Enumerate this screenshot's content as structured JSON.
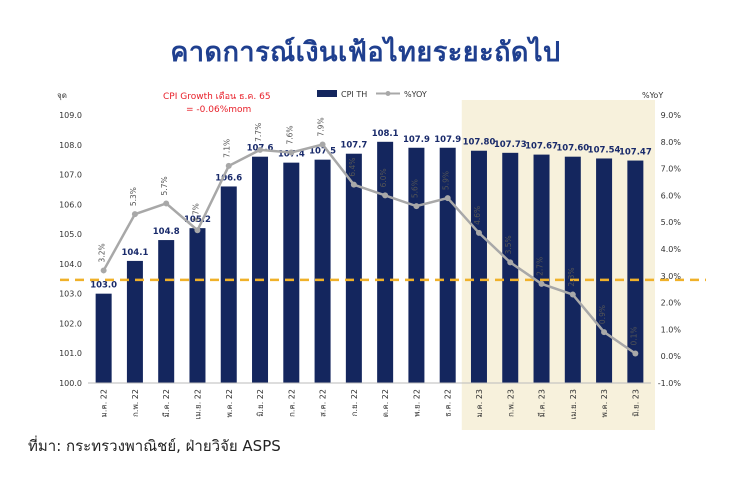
{
  "title": "คาดการณ์เงินเฟ้อไทยระยะถัดไป",
  "source": "ที่มา:  กระทรวงพาณิชย์, ฝ่ายวิจัย ASPS",
  "note_line1": "CPI Growth เดือน ธ.ค. 65",
  "note_line2": "= -0.06%mom",
  "colors": {
    "bar": "#14265e",
    "line": "#a8a8a8",
    "forecast_bg": "#f7f1dc",
    "target_line": "#f0b12a",
    "title": "#1f3f8f",
    "note": "#e8202a"
  },
  "chart_data": {
    "type": "bar+line",
    "categories": [
      "ม.ค. 22",
      "ก.พ. 22",
      "มี.ค. 22",
      "เม.ย. 22",
      "พ.ค. 22",
      "มิ.ย. 22",
      "ก.ค. 22",
      "ส.ค. 22",
      "ก.ย. 22",
      "ต.ค. 22",
      "พ.ย. 22",
      "ธ.ค. 22",
      "ม.ค. 23",
      "ก.พ. 23",
      "มี.ค. 23",
      "เม.ย. 23",
      "พ.ค. 23",
      "มิ.ย. 23"
    ],
    "series": [
      {
        "name": "CPI TH",
        "axis": "left",
        "type": "bar",
        "values": [
          103.0,
          104.1,
          104.8,
          105.2,
          106.6,
          107.6,
          107.4,
          107.5,
          107.7,
          108.1,
          107.9,
          107.9,
          107.8,
          107.73,
          107.67,
          107.6,
          107.54,
          107.47
        ],
        "labels": [
          "103.0",
          "104.1",
          "104.8",
          "105.2",
          "106.6",
          "107.6",
          "107.4",
          "107.5",
          "107.7",
          "108.1",
          "107.9",
          "107.9",
          "107.80",
          "107.73",
          "107.67",
          "107.60",
          "107.54",
          "107.47"
        ]
      },
      {
        "name": "%YOY",
        "axis": "right",
        "type": "line",
        "values": [
          3.2,
          5.3,
          5.7,
          4.7,
          7.1,
          7.7,
          7.6,
          7.9,
          6.4,
          6.0,
          5.6,
          5.9,
          4.6,
          3.5,
          2.7,
          2.3,
          0.9,
          0.1
        ],
        "labels": [
          "3.2%",
          "5.3%",
          "5.7%",
          "4.7%",
          "7.1%",
          "7.7%",
          "7.6%",
          "7.9%",
          "6.4%",
          "6.0%",
          "5.6%",
          "5.9%",
          "4.6%",
          "3.5%",
          "2.7%",
          "2.3%",
          "0.9%",
          "0.1%"
        ]
      }
    ],
    "left_axis": {
      "label": "จุด",
      "min": 100.0,
      "max": 109.0,
      "step": 1.0,
      "ticks": [
        "100.0",
        "101.0",
        "102.0",
        "103.0",
        "104.0",
        "105.0",
        "106.0",
        "107.0",
        "108.0",
        "109.0"
      ]
    },
    "right_axis": {
      "label": "%YoY",
      "min": -1.0,
      "max": 9.0,
      "step": 1.0,
      "ticks": [
        "-1.0%",
        "0.0%",
        "1.0%",
        "2.0%",
        "3.0%",
        "4.0%",
        "5.0%",
        "6.0%",
        "7.0%",
        "8.0%",
        "9.0%"
      ]
    },
    "target_line_yoy": 2.85,
    "forecast_start_index": 12,
    "grid": false,
    "legend": "top"
  }
}
